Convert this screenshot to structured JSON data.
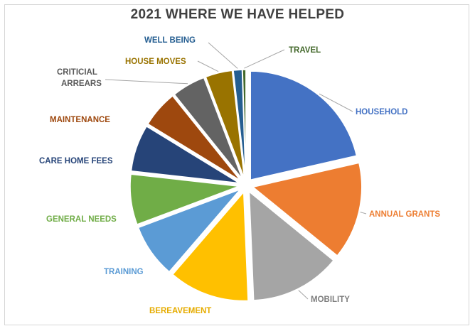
{
  "chart_data": {
    "type": "pie",
    "title": "2021 WHERE WE HAVE HELPED",
    "slices": [
      {
        "label": "HOUSEHOLD",
        "value": 21.5,
        "color": "#4472c4"
      },
      {
        "label": "ANNUAL GRANTS",
        "value": 14.5,
        "color": "#ed7d31"
      },
      {
        "label": "MOBILITY",
        "value": 13.5,
        "color": "#a5a5a5"
      },
      {
        "label": "BEREAVEMENT",
        "value": 12.0,
        "color": "#ffc000"
      },
      {
        "label": "TRAINING",
        "value": 8.0,
        "color": "#5b9bd5"
      },
      {
        "label": "GENERAL NEEDS",
        "value": 7.5,
        "color": "#70ad47"
      },
      {
        "label": "CARE HOME FEES",
        "value": 7.0,
        "color": "#264478"
      },
      {
        "label": "MAINTENANCE",
        "value": 5.5,
        "color": "#9e480e"
      },
      {
        "label": "CRITICIAL ARREARS",
        "value": 5.0,
        "color": "#636363"
      },
      {
        "label": "HOUSE MOVES",
        "value": 4.0,
        "color": "#997300"
      },
      {
        "label": "WELL BEING",
        "value": 1.3,
        "color": "#255e91"
      },
      {
        "label": "TRAVEL",
        "value": 0.5,
        "color": "#43682b"
      }
    ]
  }
}
